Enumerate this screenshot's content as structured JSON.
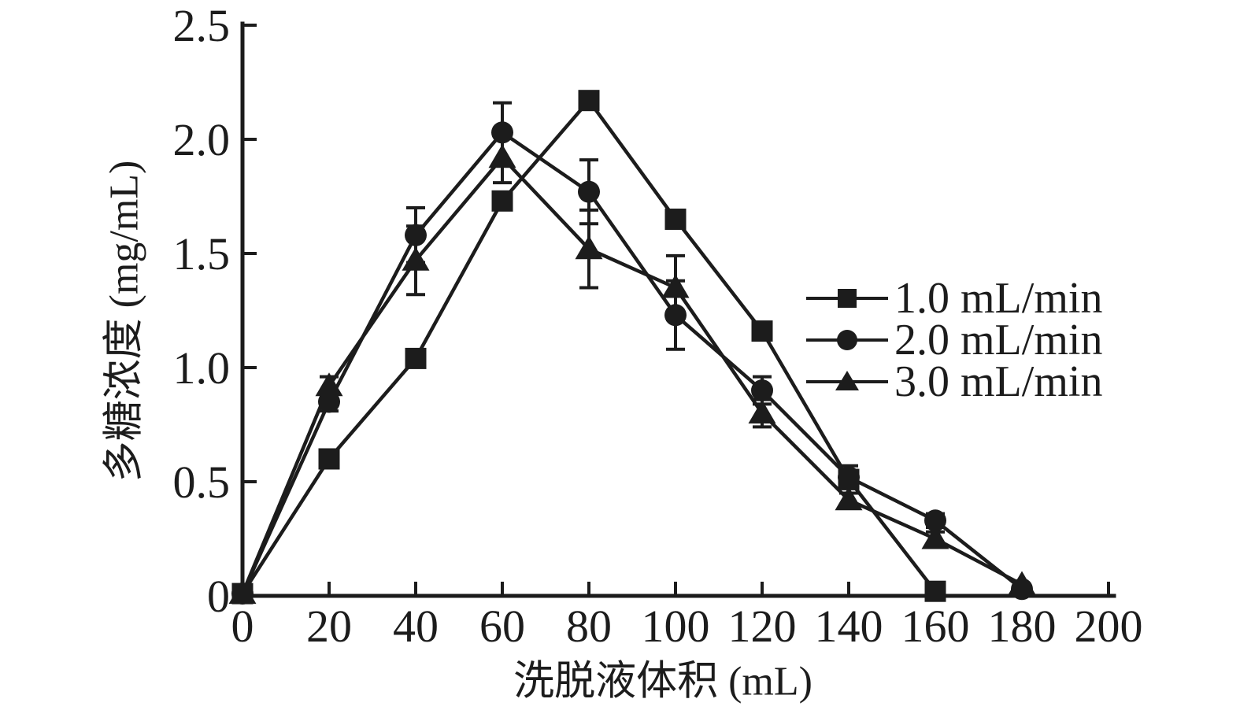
{
  "figure": {
    "background": "#ffffff",
    "ink": "#1c1c1c"
  },
  "chart_data": {
    "type": "line",
    "title": "",
    "xlabel": "洗脱液体积 (mL)",
    "ylabel": "多糖浓度 (mg/mL)",
    "xlim": [
      0,
      200
    ],
    "ylim": [
      0,
      2.5
    ],
    "xticks": [
      0,
      20,
      40,
      60,
      80,
      100,
      120,
      140,
      160,
      180,
      200
    ],
    "xtick_labels": [
      "0",
      "20",
      "40",
      "60",
      "80",
      "100",
      "120",
      "140",
      "160",
      "180",
      "200"
    ],
    "yticks": [
      0,
      0.5,
      1.0,
      1.5,
      2.0,
      2.5
    ],
    "ytick_labels": [
      "0",
      "0.5",
      "1.0",
      "1.5",
      "2.0",
      "2.5"
    ],
    "grid": false,
    "legend_position": "right-middle",
    "series": [
      {
        "name": "1.0 mL/min",
        "marker": "square",
        "x": [
          0,
          20,
          40,
          60,
          80,
          100,
          120,
          140,
          160
        ],
        "y": [
          0.01,
          0.6,
          1.04,
          1.73,
          2.17,
          1.65,
          1.16,
          0.51,
          0.02
        ],
        "yerr": [
          0,
          0,
          0,
          0,
          0,
          0,
          0,
          0.04,
          0
        ]
      },
      {
        "name": "2.0 mL/min",
        "marker": "circle",
        "x": [
          0,
          20,
          40,
          60,
          80,
          100,
          120,
          140,
          160,
          180
        ],
        "y": [
          0.01,
          0.85,
          1.58,
          2.03,
          1.77,
          1.23,
          0.9,
          0.52,
          0.33,
          0.03
        ],
        "yerr": [
          0,
          0.04,
          0.12,
          0.13,
          0.14,
          0.15,
          0.06,
          0.05,
          0.03,
          0
        ]
      },
      {
        "name": "3.0 mL/min",
        "marker": "triangle",
        "x": [
          0,
          20,
          40,
          60,
          80,
          100,
          120,
          140,
          160,
          180
        ],
        "y": [
          0.01,
          0.92,
          1.47,
          1.92,
          1.52,
          1.35,
          0.8,
          0.42,
          0.25,
          0.05
        ],
        "yerr": [
          0,
          0.04,
          0.15,
          0.11,
          0.17,
          0.14,
          0.06,
          0.03,
          0.03,
          0
        ]
      }
    ]
  }
}
